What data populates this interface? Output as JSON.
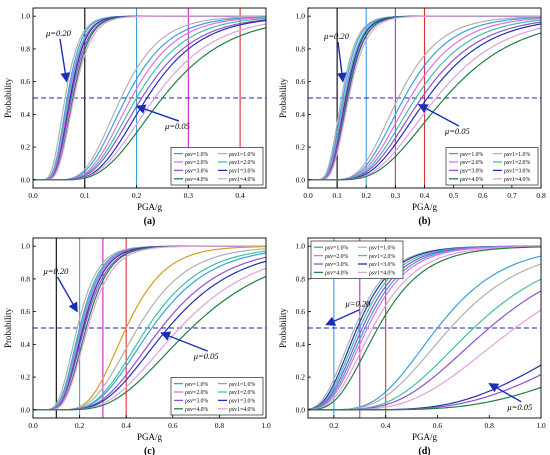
{
  "chart_data": [
    {
      "type": "line",
      "panel_label": "(a)",
      "xlabel": "PGA/g",
      "ylabel": "Probability",
      "xlim": [
        0,
        0.45
      ],
      "ylim": [
        -0.05,
        1.05
      ],
      "x_ticks": [
        "0.0",
        "0.1",
        "0.2",
        "0.3",
        "0.4"
      ],
      "x_tick_values": [
        0,
        0.1,
        0.2,
        0.3,
        0.4
      ],
      "y_ticks": [
        "0.0",
        "0.2",
        "0.4",
        "0.6",
        "0.8",
        "1.0"
      ],
      "y_tick_values": [
        0,
        0.2,
        0.4,
        0.6,
        0.8,
        1.0
      ],
      "annotations": [
        {
          "text": "μ=0.20",
          "x": 0.025,
          "y": 0.88,
          "arrow_to": [
            0.065,
            0.6
          ]
        },
        {
          "text": "μ=0.05",
          "x": 0.255,
          "y": 0.31,
          "arrow_to": [
            0.2,
            0.45
          ]
        }
      ],
      "ref_lines": [
        {
          "type": "v",
          "value": 0.1,
          "color": "#000000"
        },
        {
          "type": "v",
          "value": 0.2,
          "color": "#3aa0e0"
        },
        {
          "type": "v",
          "value": 0.3,
          "color": "#d020d0"
        },
        {
          "type": "v",
          "value": 0.4,
          "color": "#e03030"
        },
        {
          "type": "h",
          "value": 0.5,
          "color": "#2020c0",
          "style": "dashed"
        }
      ],
      "legend": {
        "placement": "bottom-right",
        "entries": [
          {
            "label": "ρsv=1.0%",
            "color": "#3aa0e0"
          },
          {
            "label": "ρsv1=1.0%",
            "color": "#b0b0b0"
          },
          {
            "label": "ρsv=2.0%",
            "color": "#e070e0"
          },
          {
            "label": "ρsv1=2.0%",
            "color": "#40c0a0"
          },
          {
            "label": "ρsv=3.0%",
            "color": "#9050d0"
          },
          {
            "label": "ρsv1=3.0%",
            "color": "#2030b0"
          },
          {
            "label": "ρsv=4.0%",
            "color": "#208040"
          },
          {
            "label": "ρsv1=4.0%",
            "color": "#e0a0e0"
          }
        ]
      },
      "series": [
        {
          "color": "#b0b0b0",
          "median": 0.062,
          "beta": 0.35
        },
        {
          "color": "#3aa0e0",
          "median": 0.066,
          "beta": 0.33
        },
        {
          "color": "#40c0a0",
          "median": 0.068,
          "beta": 0.34
        },
        {
          "color": "#e070e0",
          "median": 0.07,
          "beta": 0.33
        },
        {
          "color": "#2030b0",
          "median": 0.072,
          "beta": 0.32
        },
        {
          "color": "#9050d0",
          "median": 0.074,
          "beta": 0.33
        },
        {
          "color": "#208040",
          "median": 0.077,
          "beta": 0.32
        },
        {
          "color": "#e0a0e0",
          "median": 0.079,
          "beta": 0.33
        },
        {
          "color": "#b0b0b0",
          "median": 0.17,
          "beta": 0.35
        },
        {
          "color": "#3aa0e0",
          "median": 0.18,
          "beta": 0.36
        },
        {
          "color": "#e070e0",
          "median": 0.19,
          "beta": 0.36
        },
        {
          "color": "#40c0a0",
          "median": 0.2,
          "beta": 0.37
        },
        {
          "color": "#9050d0",
          "median": 0.21,
          "beta": 0.38
        },
        {
          "color": "#2030b0",
          "median": 0.22,
          "beta": 0.37
        },
        {
          "color": "#e0a0e0",
          "median": 0.235,
          "beta": 0.39
        },
        {
          "color": "#208040",
          "median": 0.25,
          "beta": 0.4
        }
      ]
    },
    {
      "type": "line",
      "panel_label": "(b)",
      "xlabel": "PGA/g",
      "ylabel": "Probability",
      "xlim": [
        0,
        0.8
      ],
      "ylim": [
        -0.05,
        1.05
      ],
      "x_ticks": [
        "0.0",
        "0.1",
        "0.2",
        "0.3",
        "0.4",
        "0.5",
        "0.6",
        "0.7",
        "0.8"
      ],
      "x_tick_values": [
        0,
        0.1,
        0.2,
        0.3,
        0.4,
        0.5,
        0.6,
        0.7,
        0.8
      ],
      "y_ticks": [
        "0.0",
        "0.2",
        "0.4",
        "0.6",
        "0.8",
        "1.0"
      ],
      "y_tick_values": [
        0,
        0.2,
        0.4,
        0.6,
        0.8,
        1.0
      ],
      "annotations": [
        {
          "text": "μ=0.20",
          "x": 0.055,
          "y": 0.86,
          "arrow_to": [
            0.12,
            0.6
          ]
        },
        {
          "text": "μ=0.05",
          "x": 0.47,
          "y": 0.28,
          "arrow_to": [
            0.38,
            0.46
          ]
        }
      ],
      "ref_lines": [
        {
          "type": "v",
          "value": 0.1,
          "color": "#000000"
        },
        {
          "type": "v",
          "value": 0.2,
          "color": "#3aa0e0"
        },
        {
          "type": "v",
          "value": 0.3,
          "color": "#d020d0"
        },
        {
          "type": "v",
          "value": 0.4,
          "color": "#e03030"
        },
        {
          "type": "h",
          "value": 0.5,
          "color": "#2020c0",
          "style": "dashed"
        }
      ],
      "legend": {
        "placement": "bottom-right",
        "entries": [
          {
            "label": "ρsv=1.0%",
            "color": "#3aa0e0"
          },
          {
            "label": "ρsv1=1.0%",
            "color": "#b0b0b0"
          },
          {
            "label": "ρsv=2.0%",
            "color": "#e070e0"
          },
          {
            "label": "ρsv1=2.0%",
            "color": "#40c0a0"
          },
          {
            "label": "ρsv=3.0%",
            "color": "#9050d0"
          },
          {
            "label": "ρsv1=3.0%",
            "color": "#2030b0"
          },
          {
            "label": "ρsv=4.0%",
            "color": "#208040"
          },
          {
            "label": "ρsv1=4.0%",
            "color": "#e0a0e0"
          }
        ]
      },
      "series": [
        {
          "color": "#b0b0b0",
          "median": 0.115,
          "beta": 0.35
        },
        {
          "color": "#3aa0e0",
          "median": 0.12,
          "beta": 0.34
        },
        {
          "color": "#40c0a0",
          "median": 0.125,
          "beta": 0.34
        },
        {
          "color": "#e070e0",
          "median": 0.128,
          "beta": 0.34
        },
        {
          "color": "#2030b0",
          "median": 0.13,
          "beta": 0.33
        },
        {
          "color": "#9050d0",
          "median": 0.133,
          "beta": 0.34
        },
        {
          "color": "#208040",
          "median": 0.136,
          "beta": 0.33
        },
        {
          "color": "#e0a0e0",
          "median": 0.14,
          "beta": 0.34
        },
        {
          "color": "#b0b0b0",
          "median": 0.31,
          "beta": 0.36
        },
        {
          "color": "#3aa0e0",
          "median": 0.33,
          "beta": 0.37
        },
        {
          "color": "#e070e0",
          "median": 0.35,
          "beta": 0.38
        },
        {
          "color": "#40c0a0",
          "median": 0.37,
          "beta": 0.39
        },
        {
          "color": "#9050d0",
          "median": 0.39,
          "beta": 0.4
        },
        {
          "color": "#2030b0",
          "median": 0.41,
          "beta": 0.4
        },
        {
          "color": "#e0a0e0",
          "median": 0.44,
          "beta": 0.41
        },
        {
          "color": "#208040",
          "median": 0.47,
          "beta": 0.42
        }
      ]
    },
    {
      "type": "line",
      "panel_label": "(c)",
      "xlabel": "PGA/g",
      "ylabel": "Probability",
      "xlim": [
        0,
        1.0
      ],
      "ylim": [
        -0.05,
        1.05
      ],
      "x_ticks": [
        "0.0",
        "0.2",
        "0.4",
        "0.6",
        "0.8",
        "1.0"
      ],
      "x_tick_values": [
        0,
        0.2,
        0.4,
        0.6,
        0.8,
        1.0
      ],
      "y_ticks": [
        "0.0",
        "0.2",
        "0.4",
        "0.6",
        "0.8",
        "1.0"
      ],
      "y_tick_values": [
        0,
        0.2,
        0.4,
        0.6,
        0.8,
        1.0
      ],
      "annotations": [
        {
          "text": "μ=0.20",
          "x": 0.045,
          "y": 0.83,
          "arrow_to": [
            0.19,
            0.6
          ]
        },
        {
          "text": "μ=0.05",
          "x": 0.69,
          "y": 0.31,
          "arrow_to": [
            0.55,
            0.47
          ]
        }
      ],
      "ref_lines": [
        {
          "type": "v",
          "value": 0.1,
          "color": "#000000"
        },
        {
          "type": "v",
          "value": 0.2,
          "color": "#3aa0e0"
        },
        {
          "type": "v",
          "value": 0.3,
          "color": "#d020d0"
        },
        {
          "type": "v",
          "value": 0.4,
          "color": "#e03030"
        },
        {
          "type": "h",
          "value": 0.5,
          "color": "#2020c0",
          "style": "dashed"
        }
      ],
      "legend": {
        "placement": "bottom-right",
        "entries": [
          {
            "label": "ρsv=1.0%",
            "color": "#3aa0e0"
          },
          {
            "label": "ρsv1=1.0%",
            "color": "#d0a020"
          },
          {
            "label": "ρsv=2.0%",
            "color": "#e070e0"
          },
          {
            "label": "ρsv1=2.0%",
            "color": "#40c0a0"
          },
          {
            "label": "ρsv=3.0%",
            "color": "#9050d0"
          },
          {
            "label": "ρsv1=3.0%",
            "color": "#2030b0"
          },
          {
            "label": "ρsv=4.0%",
            "color": "#208040"
          },
          {
            "label": "ρsv1=4.0%",
            "color": "#e0a0e0"
          }
        ]
      },
      "series": [
        {
          "color": "#b0b0b0",
          "median": 0.19,
          "beta": 0.36
        },
        {
          "color": "#3aa0e0",
          "median": 0.2,
          "beta": 0.35
        },
        {
          "color": "#40c0a0",
          "median": 0.205,
          "beta": 0.35
        },
        {
          "color": "#e070e0",
          "median": 0.21,
          "beta": 0.34
        },
        {
          "color": "#2030b0",
          "median": 0.215,
          "beta": 0.34
        },
        {
          "color": "#9050d0",
          "median": 0.22,
          "beta": 0.35
        },
        {
          "color": "#208040",
          "median": 0.228,
          "beta": 0.34
        },
        {
          "color": "#e0a0e0",
          "median": 0.235,
          "beta": 0.35
        },
        {
          "color": "#d0a020",
          "median": 0.4,
          "beta": 0.33
        },
        {
          "color": "#b0b0b0",
          "median": 0.45,
          "beta": 0.37
        },
        {
          "color": "#40c0a0",
          "median": 0.49,
          "beta": 0.38
        },
        {
          "color": "#3aa0e0",
          "median": 0.51,
          "beta": 0.39
        },
        {
          "color": "#9050d0",
          "median": 0.55,
          "beta": 0.4
        },
        {
          "color": "#2030b0",
          "median": 0.58,
          "beta": 0.41
        },
        {
          "color": "#e0a0e0",
          "median": 0.63,
          "beta": 0.42
        },
        {
          "color": "#208040",
          "median": 0.68,
          "beta": 0.43
        }
      ]
    },
    {
      "type": "line",
      "panel_label": "(d)",
      "xlabel": "PGA/g",
      "ylabel": "Probability",
      "xlim": [
        0.1,
        1.0
      ],
      "ylim": [
        -0.05,
        1.05
      ],
      "x_ticks": [
        "0.2",
        "0.4",
        "0.6",
        "0.8",
        "1.0"
      ],
      "x_tick_values": [
        0.2,
        0.4,
        0.6,
        0.8,
        1.0
      ],
      "y_ticks": [
        "0.0",
        "0.2",
        "0.4",
        "0.6",
        "0.8",
        "1.0"
      ],
      "y_tick_values": [
        0,
        0.2,
        0.4,
        0.6,
        0.8,
        1.0
      ],
      "annotations": [
        {
          "text": "μ=0.20",
          "x": 0.245,
          "y": 0.63,
          "arrow_to": [
            0.17,
            0.52
          ]
        },
        {
          "text": "μ=0.05",
          "x": 0.87,
          "y": 0.0,
          "arrow_to": [
            0.8,
            0.16
          ]
        }
      ],
      "ref_lines": [
        {
          "type": "v",
          "value": 0.2,
          "color": "#3aa0e0"
        },
        {
          "type": "v",
          "value": 0.3,
          "color": "#d020d0"
        },
        {
          "type": "v",
          "value": 0.4,
          "color": "#e03030"
        },
        {
          "type": "h",
          "value": 0.5,
          "color": "#2020c0",
          "style": "dashed"
        }
      ],
      "legend": {
        "placement": "top-left",
        "entries": [
          {
            "label": "ρsv=1.0%",
            "color": "#3aa0e0"
          },
          {
            "label": "ρsv1=1.0%",
            "color": "#b0b0b0"
          },
          {
            "label": "ρsv=2.0%",
            "color": "#e070e0"
          },
          {
            "label": "ρsv1=2.0%",
            "color": "#40c0a0"
          },
          {
            "label": "ρsv=3.0%",
            "color": "#9050d0"
          },
          {
            "label": "ρsv1=3.0%",
            "color": "#2030b0"
          },
          {
            "label": "ρsv=4.0%",
            "color": "#208040"
          },
          {
            "label": "ρsv1=4.0%",
            "color": "#e0a0e0"
          }
        ]
      },
      "series": [
        {
          "color": "#b0b0b0",
          "median": 0.28,
          "beta": 0.38
        },
        {
          "color": "#2030b0",
          "median": 0.29,
          "beta": 0.37
        },
        {
          "color": "#40c0a0",
          "median": 0.3,
          "beta": 0.37
        },
        {
          "color": "#9050d0",
          "median": 0.31,
          "beta": 0.37
        },
        {
          "color": "#3aa0e0",
          "median": 0.32,
          "beta": 0.37
        },
        {
          "color": "#e070e0",
          "median": 0.33,
          "beta": 0.37
        },
        {
          "color": "#e0a0e0",
          "median": 0.35,
          "beta": 0.38
        },
        {
          "color": "#208040",
          "median": 0.37,
          "beta": 0.38
        },
        {
          "color": "#3aa0e0",
          "median": 0.6,
          "beta": 0.33
        },
        {
          "color": "#b0b0b0",
          "median": 0.65,
          "beta": 0.35
        },
        {
          "color": "#40c0a0",
          "median": 0.74,
          "beta": 0.36
        },
        {
          "color": "#9050d0",
          "median": 0.8,
          "beta": 0.37
        },
        {
          "color": "#e0a0e0",
          "median": 0.9,
          "beta": 0.38
        },
        {
          "color": "#2030b0",
          "median": 1.25,
          "beta": 0.37
        },
        {
          "color": "#9050d0",
          "median": 1.35,
          "beta": 0.38
        },
        {
          "color": "#208040",
          "median": 1.55,
          "beta": 0.4
        }
      ]
    }
  ]
}
